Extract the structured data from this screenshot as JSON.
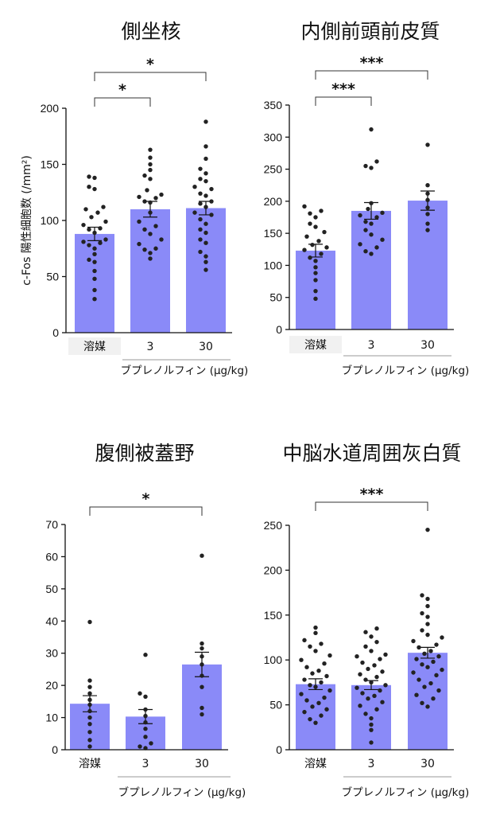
{
  "figure": {
    "ylabel": "c-Fos 陽性細胞数 (/mm²)",
    "xgroup_label": "ブプレノルフィン (μg/kg)",
    "categories": [
      "溶媒",
      "3",
      "30"
    ]
  },
  "chart_data": [
    {
      "type": "bar",
      "title": "側坐核",
      "categories": [
        "溶媒",
        "3",
        "30"
      ],
      "values": [
        88,
        110,
        111
      ],
      "sem": [
        6,
        7,
        6
      ],
      "ylim": [
        0,
        200
      ],
      "yticks": [
        0,
        50,
        100,
        150,
        200
      ],
      "bar_color": "#8a8af8",
      "points": [
        [
          139,
          138,
          130,
          128,
          112,
          110,
          107,
          103,
          99,
          96,
          93,
          92,
          89,
          83,
          81,
          80,
          78,
          75,
          70,
          65,
          63,
          55,
          48,
          38,
          30
        ],
        [
          163,
          156,
          150,
          145,
          140,
          137,
          127,
          123,
          121,
          120,
          117,
          116,
          107,
          99,
          95,
          92,
          88,
          83,
          79,
          75,
          74,
          71,
          66
        ],
        [
          188,
          166,
          155,
          146,
          142,
          137,
          135,
          130,
          128,
          124,
          122,
          117,
          115,
          112,
          107,
          105,
          101,
          97,
          92,
          89,
          83,
          80,
          72,
          68,
          63,
          56
        ]
      ],
      "significance": [
        {
          "from": 0,
          "to": 1,
          "label": "*"
        },
        {
          "from": 0,
          "to": 2,
          "label": "*"
        }
      ]
    },
    {
      "type": "bar",
      "title": "内側前頭前皮質",
      "categories": [
        "溶媒",
        "3",
        "30"
      ],
      "values": [
        123,
        185,
        201
      ],
      "sem": [
        10,
        13,
        15
      ],
      "ylim": [
        0,
        350
      ],
      "yticks": [
        0,
        50,
        100,
        150,
        200,
        250,
        300,
        350
      ],
      "bar_color": "#8a8af8",
      "points": [
        [
          192,
          185,
          181,
          175,
          165,
          160,
          152,
          145,
          138,
          132,
          128,
          124,
          118,
          112,
          107,
          97,
          88,
          77,
          60,
          48
        ],
        [
          312,
          262,
          255,
          252,
          197,
          188,
          182,
          178,
          175,
          168,
          165,
          155,
          148,
          140,
          133,
          128,
          122,
          118
        ],
        [
          288,
          225,
          212,
          202,
          190,
          180,
          165,
          155
        ]
      ],
      "significance": [
        {
          "from": 0,
          "to": 1,
          "label": "***"
        },
        {
          "from": 0,
          "to": 2,
          "label": "***"
        }
      ]
    },
    {
      "type": "bar",
      "title": "腹側被蓋野",
      "categories": [
        "溶媒",
        "3",
        "30"
      ],
      "values": [
        14.3,
        10.3,
        26.5
      ],
      "sem": [
        2.5,
        2.2,
        3.8
      ],
      "ylim": [
        0,
        70
      ],
      "yticks": [
        0,
        10,
        20,
        30,
        40,
        50,
        60,
        70
      ],
      "bar_color": "#8a8af8",
      "points": [
        [
          39.7,
          21.5,
          19.5,
          17.5,
          15.5,
          14.0,
          12.0,
          10.0,
          8.0,
          5.5,
          3.0,
          1.0
        ],
        [
          29.5,
          17.5,
          16.5,
          12.5,
          10.5,
          8.5,
          6.5,
          4.0,
          2.0,
          1.0,
          0.5
        ],
        [
          60.3,
          33.0,
          31.5,
          29.0,
          26.5,
          23.0,
          19.5,
          13.0,
          11.0
        ]
      ],
      "significance": [
        {
          "from": 0,
          "to": 2,
          "label": "*"
        }
      ]
    },
    {
      "type": "bar",
      "title": "中脳水道周囲灰白質",
      "categories": [
        "溶媒",
        "3",
        "30"
      ],
      "values": [
        73,
        72,
        108
      ],
      "sem": [
        6,
        5,
        6
      ],
      "ylim": [
        0,
        250
      ],
      "yticks": [
        0,
        50,
        100,
        150,
        200,
        250
      ],
      "bar_color": "#8a8af8",
      "points": [
        [
          136,
          130,
          122,
          118,
          115,
          110,
          105,
          100,
          96,
          92,
          88,
          85,
          82,
          78,
          75,
          72,
          70,
          66,
          62,
          58,
          55,
          52,
          48,
          45,
          42,
          38,
          34,
          30
        ],
        [
          135,
          131,
          126,
          120,
          115,
          110,
          106,
          104,
          101,
          97,
          94,
          90,
          87,
          84,
          81,
          78,
          75,
          72,
          69,
          66,
          63,
          60,
          57,
          53,
          49,
          45,
          40,
          35,
          28,
          22,
          8
        ],
        [
          245,
          172,
          168,
          160,
          152,
          148,
          140,
          133,
          128,
          125,
          121,
          117,
          114,
          110,
          107,
          104,
          101,
          98,
          95,
          92,
          89,
          86,
          83,
          78,
          74,
          70,
          66,
          61,
          57,
          52,
          48
        ]
      ],
      "significance": [
        {
          "from": 0,
          "to": 2,
          "label": "***"
        }
      ]
    }
  ]
}
